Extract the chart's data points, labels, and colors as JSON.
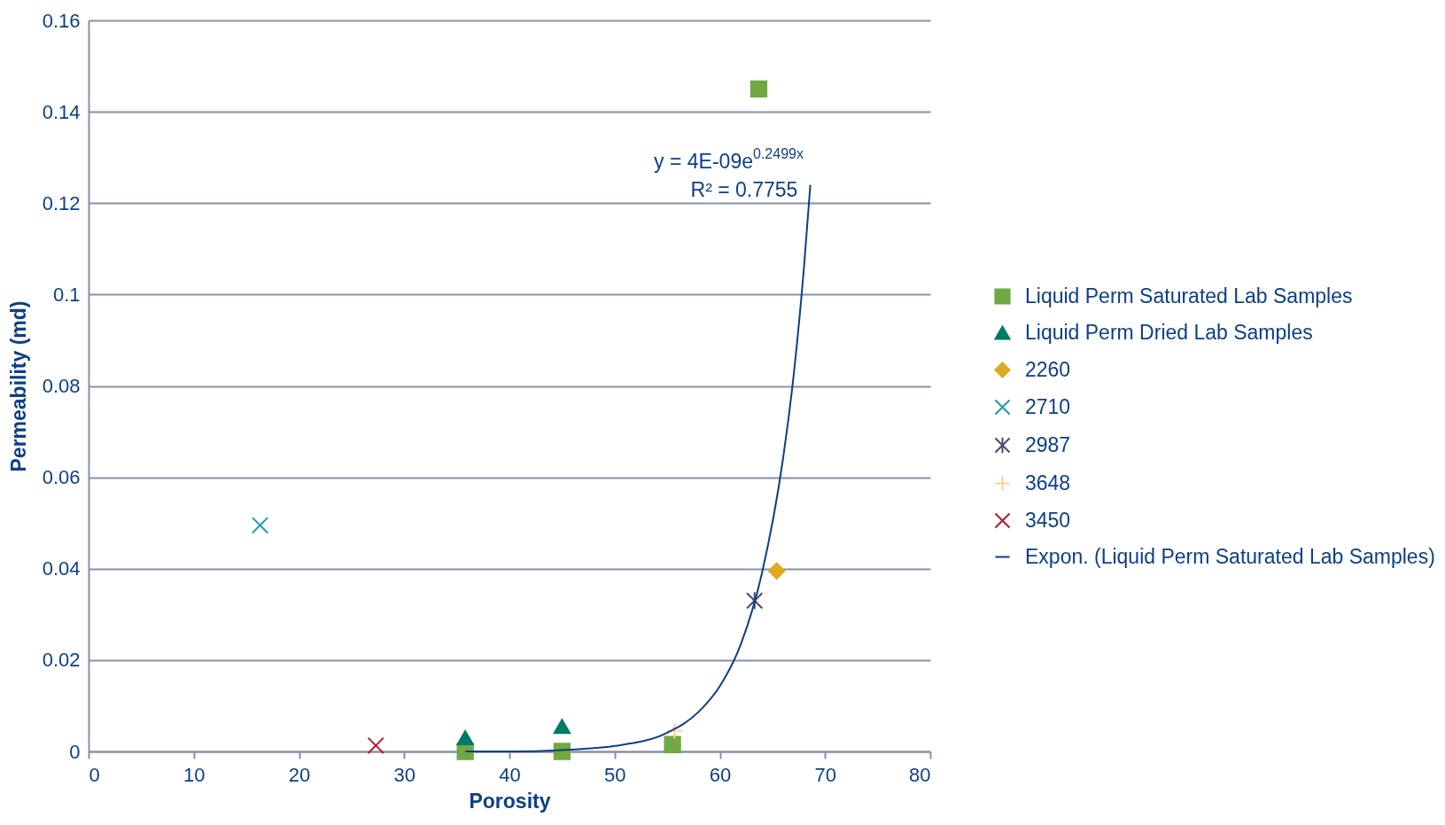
{
  "chart_data": {
    "type": "scatter",
    "xlabel": "Porosity",
    "ylabel": "Permeability (md)",
    "xlim": [
      0,
      80
    ],
    "xticks": [
      0,
      10,
      20,
      30,
      40,
      50,
      60,
      70,
      80
    ],
    "ylim": [
      0,
      0.16
    ],
    "yticks": [
      0,
      0.02,
      0.04,
      0.06,
      0.08,
      0.1,
      0.12,
      0.14,
      0.16
    ],
    "grid": "y",
    "legend": "right",
    "annotations": [
      "y = 4E-09e$^{0.2499x}$",
      "R² = 0.7755"
    ],
    "series": [
      {
        "name": "Liquid Perm Saturated Lab Samples",
        "color": "#70a843",
        "marker": "square",
        "x": [
          35.8,
          45,
          55.5,
          63.7
        ],
        "values": [
          0,
          0,
          0.0015,
          0.145
        ]
      },
      {
        "name": "Liquid Perm Dried Lab Samples",
        "color": "#007a67",
        "marker": "triangle",
        "x": [
          35.8,
          45
        ],
        "values": [
          0.003,
          0.0055
        ]
      },
      {
        "name": "2260",
        "color": "#e0aa1f",
        "marker": "diamond",
        "x": [
          65.4
        ],
        "values": [
          0.0395
        ]
      },
      {
        "name": "2710",
        "color": "#1a9bb0",
        "marker": "cross",
        "x": [
          16.3
        ],
        "values": [
          0.0495
        ]
      },
      {
        "name": "2987",
        "color": "#4a4a70",
        "x": [
          63.3
        ],
        "values": [
          0.033
        ]
      },
      {
        "name": "3648",
        "color": "#fdd28a",
        "marker": "plus",
        "x": [
          55.7
        ],
        "values": [
          0.0045
        ]
      },
      {
        "name": "3450",
        "color": "#b01e23",
        "marker": "cross",
        "x": [
          27.3
        ],
        "values": [
          0.0013
        ]
      },
      {
        "name": "Expon. (Liquid Perm Saturated Lab Samples)",
        "type": "line",
        "color": "#0d3f85",
        "marker": "none",
        "line_style": "solid",
        "x": [
          35.8,
          40,
          45,
          50,
          55,
          58,
          60,
          62,
          64,
          66,
          67,
          68,
          68.6
        ],
        "values": [
          0,
          0,
          0.0003,
          0.0012,
          0.0041,
          0.0087,
          0.0143,
          0.0235,
          0.039,
          0.064,
          0.082,
          0.106,
          0.124
        ]
      }
    ]
  }
}
